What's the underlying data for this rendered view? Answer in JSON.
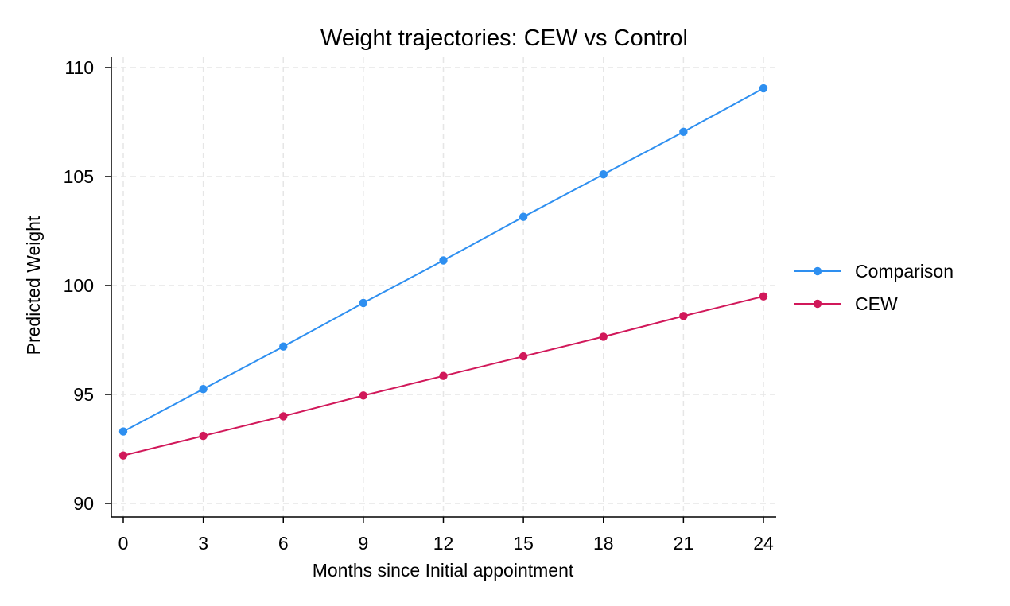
{
  "chart_data": {
    "type": "line",
    "title": "Weight trajectories: CEW vs Control",
    "xlabel": "Months since Initial appointment",
    "ylabel": "Predicted Weight",
    "x": [
      0,
      3,
      6,
      9,
      12,
      15,
      18,
      21,
      24
    ],
    "xlim": [
      0,
      24
    ],
    "ylim": [
      90,
      110
    ],
    "xticks": [
      "0",
      "3",
      "6",
      "9",
      "12",
      "15",
      "18",
      "21",
      "24"
    ],
    "yticks": [
      "90",
      "95",
      "100",
      "105",
      "110"
    ],
    "grid": true,
    "legend_position": "right",
    "series": [
      {
        "name": "Comparison",
        "color": "#2e8ff0",
        "values": [
          93.3,
          95.25,
          97.2,
          99.2,
          101.15,
          103.15,
          105.1,
          107.05,
          109.05
        ]
      },
      {
        "name": "CEW",
        "color": "#d1185a",
        "values": [
          92.2,
          93.1,
          94.0,
          94.95,
          95.85,
          96.75,
          97.65,
          98.6,
          99.5
        ]
      }
    ]
  }
}
